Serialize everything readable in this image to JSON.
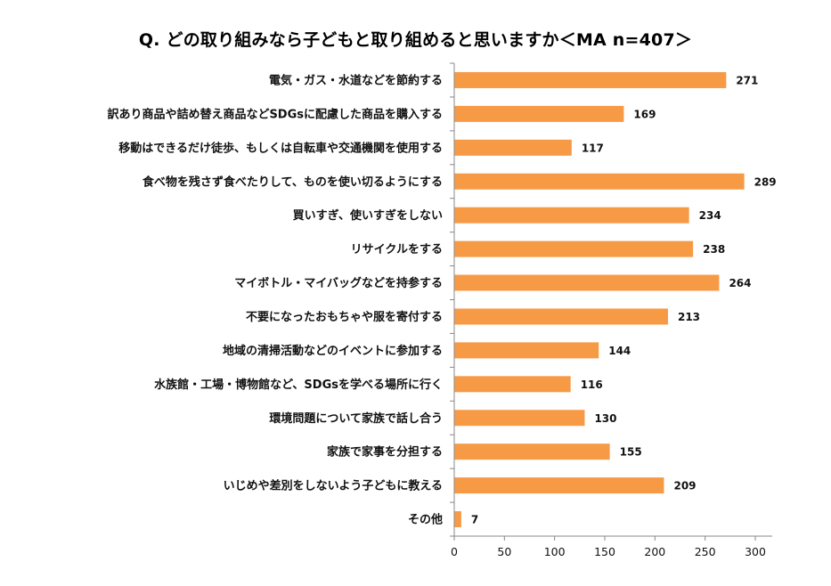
{
  "chart_data": {
    "type": "bar",
    "orientation": "horizontal",
    "title": "Q. どの取り組みなら子どもと取り組めると思いますか＜MA n=407＞",
    "categories": [
      "電気・ガス・水道などを節約する",
      "訳あり商品や詰め替え商品などSDGsに配慮した商品を購入する",
      "移動はできるだけ徒歩、もしくは自転車や交通機関を使用する",
      "食べ物を残さず食べたりして、ものを使い切るようにする",
      "買いすぎ、使いすぎをしない",
      "リサイクルをする",
      "マイボトル・マイバッグなどを持参する",
      "不要になったおもちゃや服を寄付する",
      "地域の清掃活動などのイベントに参加する",
      "水族館・工場・博物館など、SDGsを学べる場所に行く",
      "環境問題について家族で話し合う",
      "家族で家事を分担する",
      "いじめや差別をしないよう子どもに教える",
      "その他"
    ],
    "values": [
      271,
      169,
      117,
      289,
      234,
      238,
      264,
      213,
      144,
      116,
      130,
      155,
      209,
      7
    ],
    "xlim": [
      0,
      300
    ],
    "xticks": [
      0,
      50,
      100,
      150,
      200,
      250,
      300
    ],
    "xlabel": "",
    "ylabel": "",
    "grid": false,
    "bar_color": "#F79A46"
  }
}
